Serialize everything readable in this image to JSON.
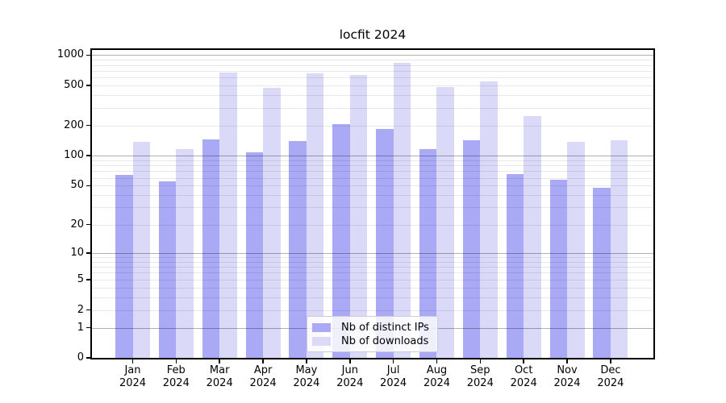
{
  "title": "locfit 2024",
  "chart_data": {
    "type": "bar",
    "title": "locfit 2024",
    "categories": [
      "Jan 2024",
      "Feb 2024",
      "Mar 2024",
      "Apr 2024",
      "May 2024",
      "Jun 2024",
      "Jul 2024",
      "Aug 2024",
      "Sep 2024",
      "Oct 2024",
      "Nov 2024",
      "Dec 2024"
    ],
    "series": [
      {
        "name": "Nb of distinct IPs",
        "color": "#a9a9f5",
        "values": [
          64,
          55,
          145,
          108,
          141,
          208,
          185,
          116,
          144,
          66,
          57,
          48
        ]
      },
      {
        "name": "Nb of downloads",
        "color": "#dadaf8",
        "values": [
          137,
          117,
          675,
          470,
          660,
          635,
          840,
          480,
          545,
          248,
          137,
          144
        ]
      }
    ],
    "xlabel": "",
    "ylabel": "",
    "yscale": "log1p",
    "yticks": [
      0,
      1,
      2,
      5,
      10,
      20,
      50,
      100,
      200,
      500,
      1000
    ],
    "ylim": [
      0,
      1100
    ],
    "grid": "on",
    "legend_position": "lower center",
    "colors": {
      "major_grid": "#b0b0b0",
      "minor_grid": "#e7e7e7",
      "spine": "#000000",
      "background": "#ffffff"
    }
  }
}
